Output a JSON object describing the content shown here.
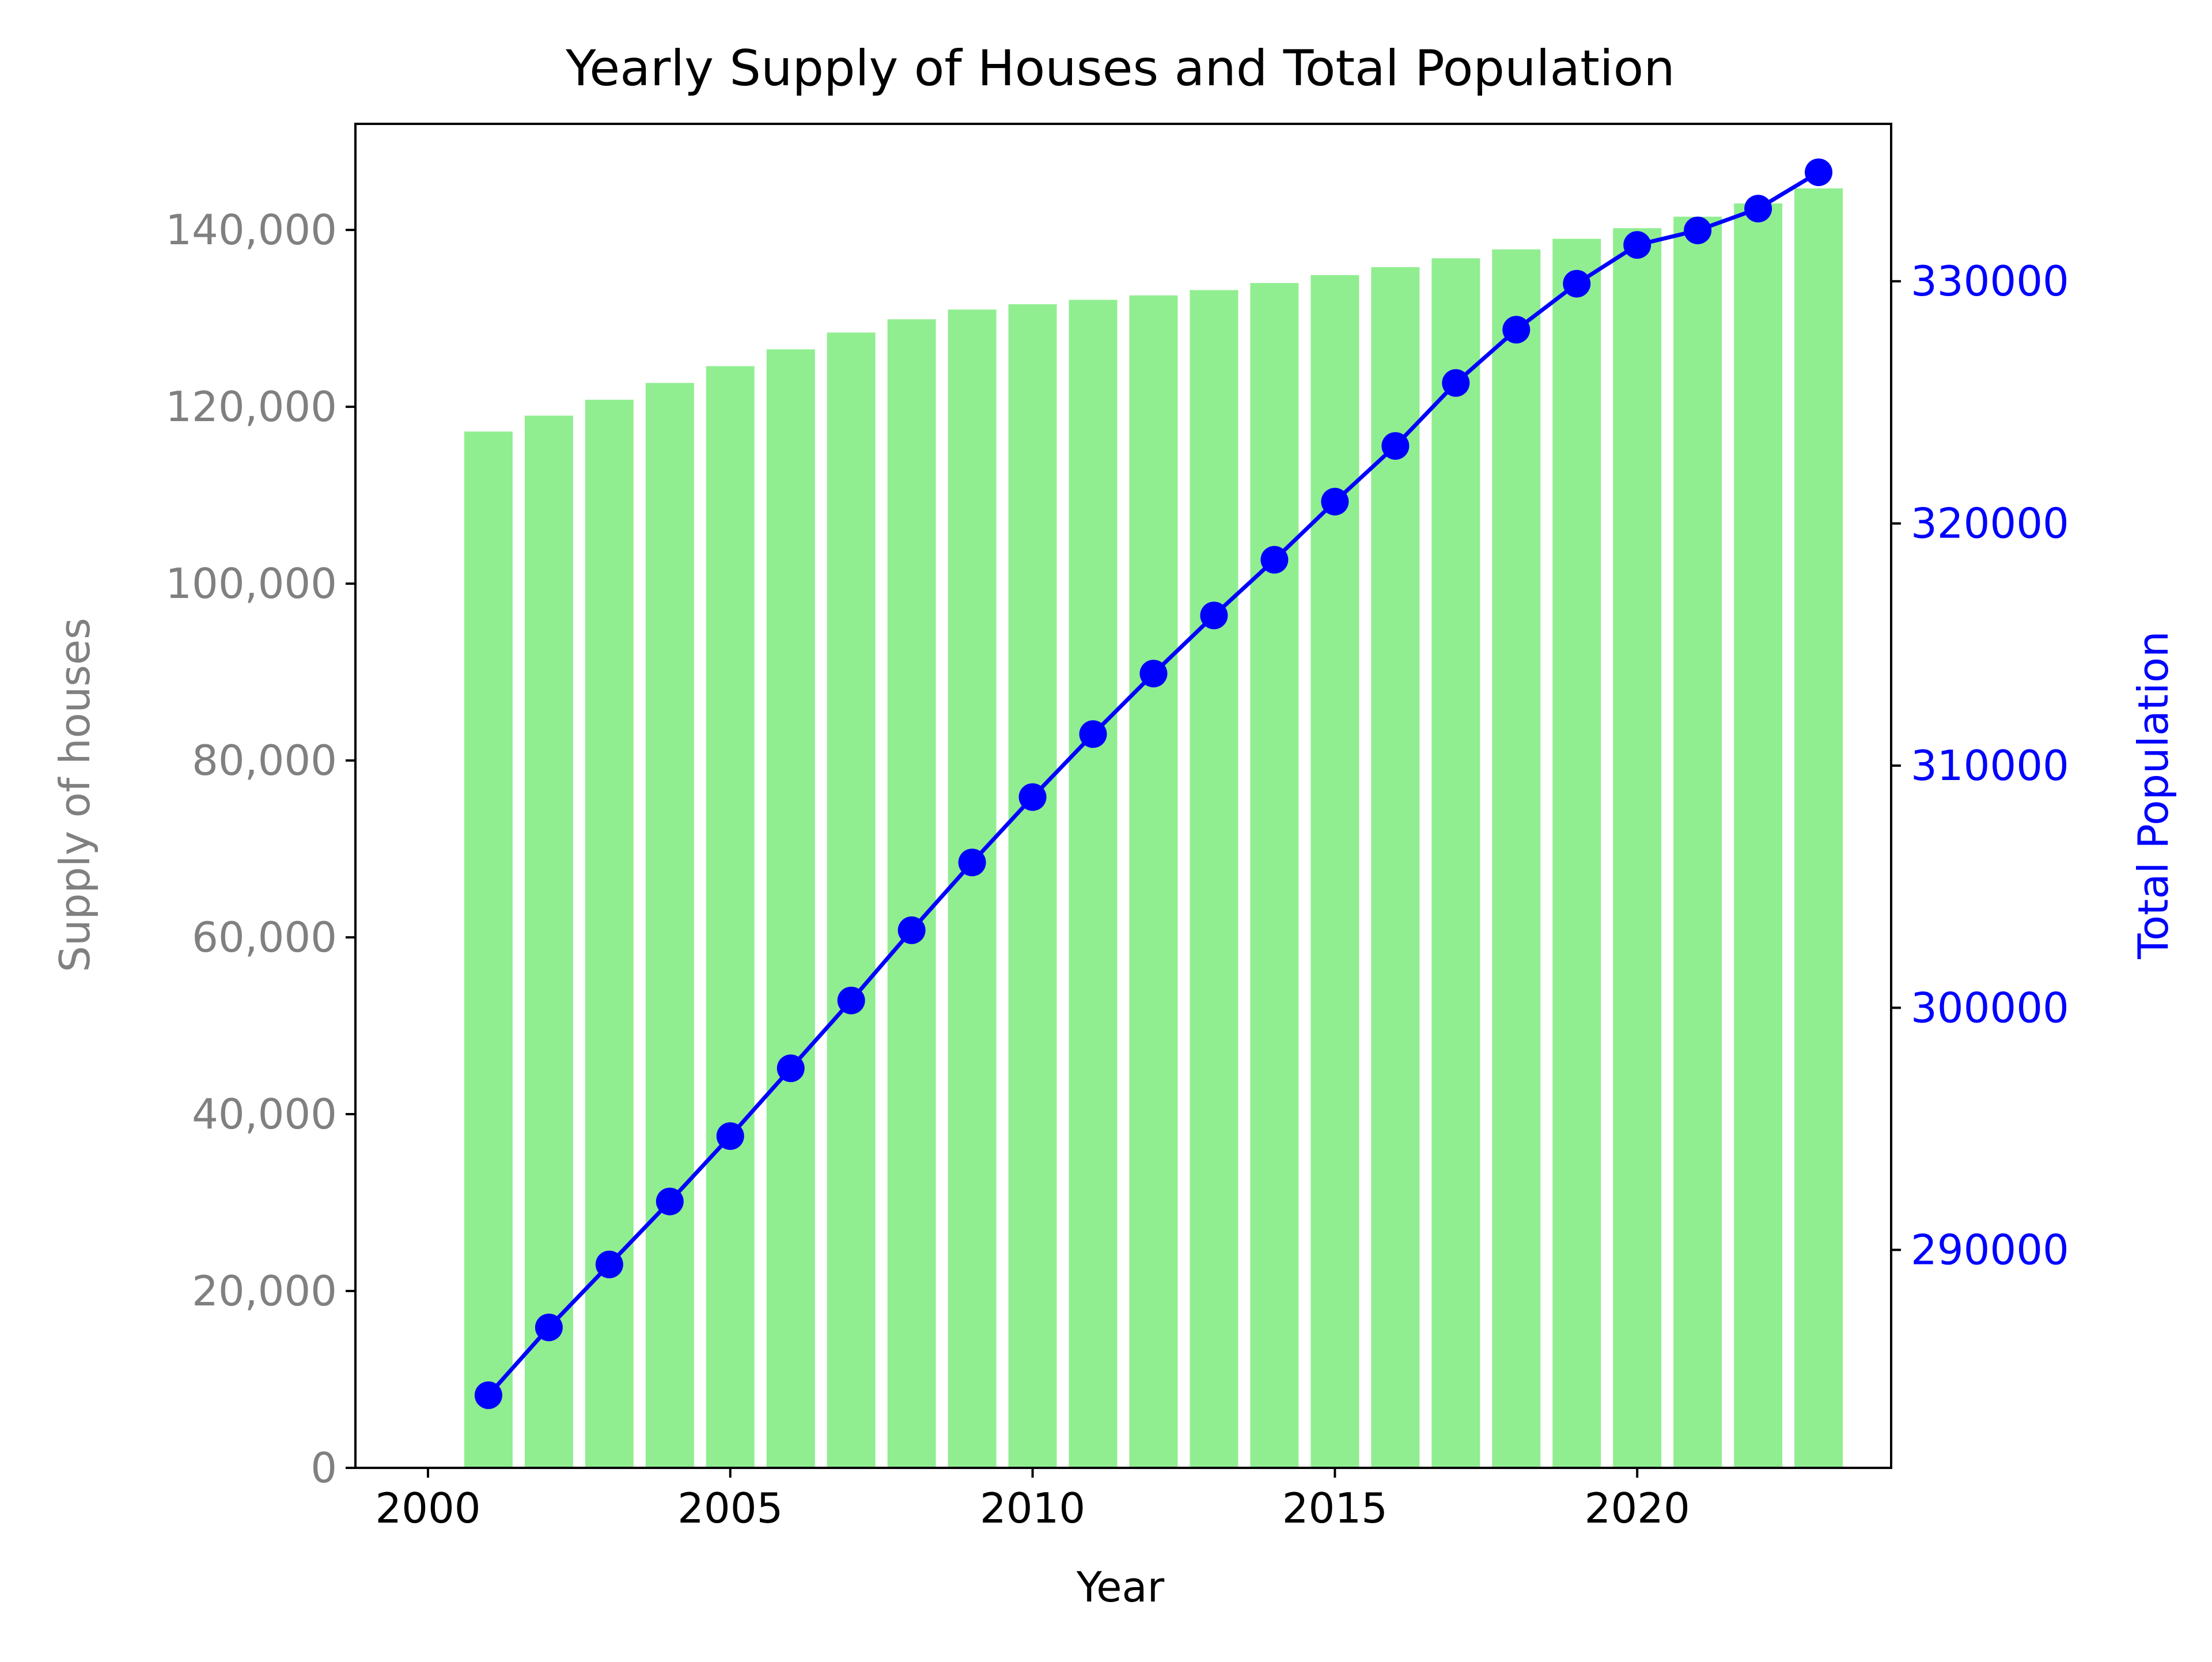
{
  "chart_data": {
    "type": "bar",
    "title": "Yearly Supply of Houses and Total Population",
    "xlabel": "Year",
    "ylabel": "Supply of houses",
    "y2label": "Total Population",
    "categories": [
      2001,
      2002,
      2003,
      2004,
      2005,
      2006,
      2007,
      2008,
      2009,
      2010,
      2011,
      2012,
      2013,
      2014,
      2015,
      2016,
      2017,
      2018,
      2019,
      2020,
      2021,
      2022,
      2023
    ],
    "x_ticks": [
      2000,
      2005,
      2010,
      2015,
      2020
    ],
    "x_tick_labels": [
      "2000",
      "2005",
      "2010",
      "2015",
      "2020"
    ],
    "xlim": [
      1998.8,
      2024.2
    ],
    "ylim": [
      0,
      152000
    ],
    "y_ticks": [
      0,
      20000,
      40000,
      60000,
      80000,
      100000,
      120000,
      140000
    ],
    "y_tick_labels": [
      "0",
      "20,000",
      "40,000",
      "60,000",
      "80,000",
      "100,000",
      "120,000",
      "140,000"
    ],
    "y2lim": [
      281000,
      336500
    ],
    "y2_ticks": [
      290000,
      300000,
      310000,
      320000,
      330000
    ],
    "y2_tick_labels": [
      "290000",
      "300000",
      "310000",
      "320000",
      "330000"
    ],
    "grid": false,
    "series": [
      {
        "name": "Supply of houses",
        "type": "bar",
        "axis": "left",
        "color": "#90ee90",
        "values": [
          117200,
          119000,
          120800,
          122700,
          124600,
          126500,
          128400,
          129900,
          131000,
          131600,
          132100,
          132600,
          133200,
          134000,
          134900,
          135800,
          136800,
          137800,
          139000,
          140200,
          141500,
          143000,
          144700
        ]
      },
      {
        "name": "Total Population",
        "type": "line",
        "axis": "right",
        "color": "#0000ff",
        "marker": "circle",
        "values": [
          284000,
          286800,
          289400,
          292000,
          294700,
          297500,
          300300,
          303200,
          306000,
          308700,
          311300,
          313800,
          316200,
          318500,
          320900,
          323200,
          325800,
          328000,
          329900,
          331500,
          332100,
          333000,
          334500
        ]
      }
    ],
    "colors": {
      "left_axis_text": "#808080",
      "right_axis_text": "#0000ff",
      "axis_line": "#000000"
    }
  }
}
